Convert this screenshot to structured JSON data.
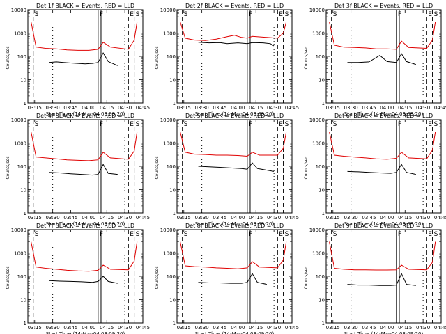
{
  "figure": {
    "xlabel": "Start Time (14-Mar-04 03:09:20)",
    "ylabel": "Counts/sec",
    "x_ticks": [
      "03:15",
      "03:30",
      "03:45",
      "04:00",
      "04:15",
      "04:30",
      "04:45"
    ],
    "y_ticks": [
      "1",
      "10",
      "100",
      "1000",
      "10000"
    ],
    "markers": [
      "S",
      "F",
      "E",
      "S"
    ],
    "colors": {
      "events": "#000000",
      "lld": "#e00000",
      "axes": "#000000"
    }
  },
  "chart_data": [
    {
      "type": "line",
      "title": "Det 1f BLACK = Events, RED = LLD",
      "xlabel": "Start Time (14-Mar-04 03:09:20)",
      "ylabel": "Counts/sec",
      "yscale": "log",
      "ylim": [
        1,
        10000
      ],
      "series": [
        {
          "name": "Events",
          "color": "#000000",
          "values": [
            [
              3.45,
              55
            ],
            [
              3.55,
              58
            ],
            [
              3.65,
              55
            ],
            [
              3.75,
              52
            ],
            [
              3.85,
              50
            ],
            [
              3.95,
              48
            ],
            [
              4.05,
              50
            ],
            [
              4.13,
              55
            ],
            [
              4.2,
              140
            ],
            [
              4.27,
              60
            ],
            [
              4.4,
              40
            ]
          ]
        },
        {
          "name": "LLD",
          "color": "#e00000",
          "values": [
            [
              3.2,
              3000
            ],
            [
              3.27,
              250
            ],
            [
              3.4,
              220
            ],
            [
              3.55,
              210
            ],
            [
              3.7,
              190
            ],
            [
              3.85,
              180
            ],
            [
              4.0,
              180
            ],
            [
              4.13,
              200
            ],
            [
              4.2,
              400
            ],
            [
              4.3,
              250
            ],
            [
              4.55,
              200
            ],
            [
              4.63,
              500
            ],
            [
              4.67,
              3000
            ]
          ]
        }
      ]
    },
    {
      "type": "line",
      "title": "Det 2f BLACK = Events, RED = LLD",
      "xlabel": "Start Time (14-Mar-04 03:09:20)",
      "ylabel": "Counts/sec",
      "yscale": "log",
      "ylim": [
        1,
        10000
      ],
      "series": [
        {
          "name": "Events",
          "color": "#000000",
          "values": [
            [
              3.45,
              400
            ],
            [
              3.6,
              380
            ],
            [
              3.75,
              390
            ],
            [
              3.85,
              350
            ],
            [
              4.0,
              380
            ],
            [
              4.13,
              350
            ],
            [
              4.2,
              390
            ],
            [
              4.35,
              380
            ],
            [
              4.45,
              350
            ],
            [
              4.5,
              280
            ]
          ]
        },
        {
          "name": "LLD",
          "color": "#e00000",
          "values": [
            [
              3.2,
              3000
            ],
            [
              3.27,
              600
            ],
            [
              3.4,
              500
            ],
            [
              3.55,
              480
            ],
            [
              3.7,
              550
            ],
            [
              3.85,
              700
            ],
            [
              3.95,
              800
            ],
            [
              4.05,
              650
            ],
            [
              4.13,
              600
            ],
            [
              4.2,
              720
            ],
            [
              4.4,
              650
            ],
            [
              4.55,
              600
            ],
            [
              4.63,
              1000
            ],
            [
              4.67,
              3000
            ]
          ]
        }
      ]
    },
    {
      "type": "line",
      "title": "Det 3f BLACK = Events, RED = LLD",
      "xlabel": "Start Time (14-Mar-04 03:09:20)",
      "ylabel": "Counts/sec",
      "yscale": "log",
      "ylim": [
        1,
        10000
      ],
      "series": [
        {
          "name": "Events",
          "color": "#000000",
          "values": [
            [
              3.45,
              55
            ],
            [
              3.6,
              55
            ],
            [
              3.75,
              58
            ],
            [
              3.9,
              110
            ],
            [
              4.0,
              60
            ],
            [
              4.13,
              55
            ],
            [
              4.2,
              130
            ],
            [
              4.27,
              60
            ],
            [
              4.4,
              45
            ]
          ]
        },
        {
          "name": "LLD",
          "color": "#e00000",
          "values": [
            [
              3.2,
              3000
            ],
            [
              3.27,
              300
            ],
            [
              3.4,
              250
            ],
            [
              3.55,
              240
            ],
            [
              3.7,
              230
            ],
            [
              3.85,
              210
            ],
            [
              4.0,
              210
            ],
            [
              4.13,
              200
            ],
            [
              4.2,
              450
            ],
            [
              4.3,
              240
            ],
            [
              4.55,
              220
            ],
            [
              4.63,
              500
            ],
            [
              4.67,
              3000
            ]
          ]
        }
      ]
    },
    {
      "type": "line",
      "title": "Det 4f BLACK = Events, RED = LLD",
      "xlabel": "Start Time (14-Mar-04 03:09:20)",
      "ylabel": "Counts/sec",
      "yscale": "log",
      "ylim": [
        1,
        10000
      ],
      "series": [
        {
          "name": "Events",
          "color": "#000000",
          "values": [
            [
              3.45,
              55
            ],
            [
              3.6,
              52
            ],
            [
              3.75,
              48
            ],
            [
              3.9,
              45
            ],
            [
              4.05,
              42
            ],
            [
              4.13,
              45
            ],
            [
              4.2,
              120
            ],
            [
              4.27,
              50
            ],
            [
              4.4,
              45
            ]
          ]
        },
        {
          "name": "LLD",
          "color": "#e00000",
          "values": [
            [
              3.2,
              3000
            ],
            [
              3.27,
              250
            ],
            [
              3.4,
              230
            ],
            [
              3.55,
              210
            ],
            [
              3.7,
              190
            ],
            [
              3.85,
              180
            ],
            [
              4.0,
              175
            ],
            [
              4.13,
              190
            ],
            [
              4.2,
              400
            ],
            [
              4.3,
              230
            ],
            [
              4.55,
              200
            ],
            [
              4.63,
              450
            ],
            [
              4.67,
              3000
            ]
          ]
        }
      ]
    },
    {
      "type": "line",
      "title": "Det 5f BLACK = Events, RED = LLD",
      "xlabel": "Start Time (14-Mar-04 03:09:20)",
      "ylabel": "Counts/sec",
      "yscale": "log",
      "ylim": [
        1,
        10000
      ],
      "series": [
        {
          "name": "Events",
          "color": "#000000",
          "values": [
            [
              3.45,
              100
            ],
            [
              3.6,
              95
            ],
            [
              3.75,
              90
            ],
            [
              3.9,
              85
            ],
            [
              4.05,
              80
            ],
            [
              4.13,
              75
            ],
            [
              4.2,
              140
            ],
            [
              4.27,
              80
            ],
            [
              4.5,
              60
            ]
          ]
        },
        {
          "name": "LLD",
          "color": "#e00000",
          "values": [
            [
              3.2,
              3000
            ],
            [
              3.27,
              400
            ],
            [
              3.4,
              330
            ],
            [
              3.55,
              320
            ],
            [
              3.7,
              300
            ],
            [
              3.85,
              300
            ],
            [
              4.0,
              290
            ],
            [
              4.13,
              270
            ],
            [
              4.2,
              400
            ],
            [
              4.3,
              300
            ],
            [
              4.55,
              300
            ],
            [
              4.63,
              600
            ],
            [
              4.67,
              3000
            ]
          ]
        }
      ]
    },
    {
      "type": "line",
      "title": "Det 6f BLACK = Events, RED = LLD",
      "xlabel": "Start Time (14-Mar-04 03:09:20)",
      "ylabel": "Counts/sec",
      "yscale": "log",
      "ylim": [
        1,
        10000
      ],
      "series": [
        {
          "name": "Events",
          "color": "#000000",
          "values": [
            [
              3.45,
              60
            ],
            [
              3.6,
              58
            ],
            [
              3.75,
              55
            ],
            [
              3.9,
              52
            ],
            [
              4.05,
              50
            ],
            [
              4.13,
              55
            ],
            [
              4.2,
              120
            ],
            [
              4.27,
              55
            ],
            [
              4.4,
              45
            ]
          ]
        },
        {
          "name": "LLD",
          "color": "#e00000",
          "values": [
            [
              3.2,
              3000
            ],
            [
              3.27,
              300
            ],
            [
              3.4,
              270
            ],
            [
              3.55,
              250
            ],
            [
              3.7,
              230
            ],
            [
              3.85,
              210
            ],
            [
              4.0,
              200
            ],
            [
              4.13,
              220
            ],
            [
              4.2,
              400
            ],
            [
              4.3,
              230
            ],
            [
              4.55,
              210
            ],
            [
              4.63,
              500
            ],
            [
              4.67,
              3000
            ]
          ]
        }
      ]
    },
    {
      "type": "line",
      "title": "Det 7f BLACK = Events, RED = LLD",
      "xlabel": "Start Time (14-Mar-04 03:09:20)",
      "ylabel": "Counts/sec",
      "yscale": "log",
      "ylim": [
        1,
        10000
      ],
      "series": [
        {
          "name": "Events",
          "color": "#000000",
          "values": [
            [
              3.45,
              65
            ],
            [
              3.6,
              62
            ],
            [
              3.75,
              60
            ],
            [
              3.9,
              58
            ],
            [
              4.05,
              55
            ],
            [
              4.13,
              60
            ],
            [
              4.2,
              100
            ],
            [
              4.27,
              60
            ],
            [
              4.4,
              50
            ]
          ]
        },
        {
          "name": "LLD",
          "color": "#e00000",
          "values": [
            [
              3.2,
              3000
            ],
            [
              3.27,
              250
            ],
            [
              3.4,
              220
            ],
            [
              3.55,
              200
            ],
            [
              3.7,
              180
            ],
            [
              3.85,
              170
            ],
            [
              4.0,
              165
            ],
            [
              4.13,
              180
            ],
            [
              4.2,
              300
            ],
            [
              4.3,
              200
            ],
            [
              4.55,
              190
            ],
            [
              4.63,
              450
            ],
            [
              4.67,
              3000
            ]
          ]
        }
      ]
    },
    {
      "type": "line",
      "title": "Det 8f BLACK = Events, RED = LLD",
      "xlabel": "Start Time (14-Mar-04 03:09:20)",
      "ylabel": "Counts/sec",
      "yscale": "log",
      "ylim": [
        1,
        10000
      ],
      "series": [
        {
          "name": "Events",
          "color": "#000000",
          "values": [
            [
              3.45,
              55
            ],
            [
              3.6,
              52
            ],
            [
              3.75,
              52
            ],
            [
              3.9,
              50
            ],
            [
              4.05,
              50
            ],
            [
              4.13,
              55
            ],
            [
              4.2,
              130
            ],
            [
              4.27,
              55
            ],
            [
              4.4,
              45
            ]
          ]
        },
        {
          "name": "LLD",
          "color": "#e00000",
          "values": [
            [
              3.2,
              3000
            ],
            [
              3.27,
              280
            ],
            [
              3.4,
              260
            ],
            [
              3.55,
              250
            ],
            [
              3.7,
              230
            ],
            [
              3.85,
              220
            ],
            [
              4.0,
              210
            ],
            [
              4.13,
              230
            ],
            [
              4.2,
              420
            ],
            [
              4.3,
              250
            ],
            [
              4.55,
              230
            ],
            [
              4.63,
              500
            ],
            [
              4.67,
              3000
            ]
          ]
        }
      ]
    },
    {
      "type": "line",
      "title": "Det 9f BLACK = Events, RED = LLD",
      "xlabel": "Start Time (14-Mar-04 03:09:20)",
      "ylabel": "Counts/sec",
      "yscale": "log",
      "ylim": [
        1,
        10000
      ],
      "series": [
        {
          "name": "Events",
          "color": "#000000",
          "values": [
            [
              3.45,
              45
            ],
            [
              3.6,
              42
            ],
            [
              3.75,
              42
            ],
            [
              3.9,
              40
            ],
            [
              4.05,
              40
            ],
            [
              4.13,
              42
            ],
            [
              4.2,
              130
            ],
            [
              4.27,
              45
            ],
            [
              4.4,
              40
            ]
          ]
        },
        {
          "name": "LLD",
          "color": "#e00000",
          "values": [
            [
              3.2,
              3000
            ],
            [
              3.27,
              220
            ],
            [
              3.4,
              200
            ],
            [
              3.55,
              190
            ],
            [
              3.7,
              190
            ],
            [
              3.85,
              185
            ],
            [
              4.0,
              185
            ],
            [
              4.13,
              190
            ],
            [
              4.2,
              300
            ],
            [
              4.3,
              200
            ],
            [
              4.55,
              190
            ],
            [
              4.63,
              400
            ],
            [
              4.67,
              3000
            ]
          ]
        }
      ]
    }
  ]
}
